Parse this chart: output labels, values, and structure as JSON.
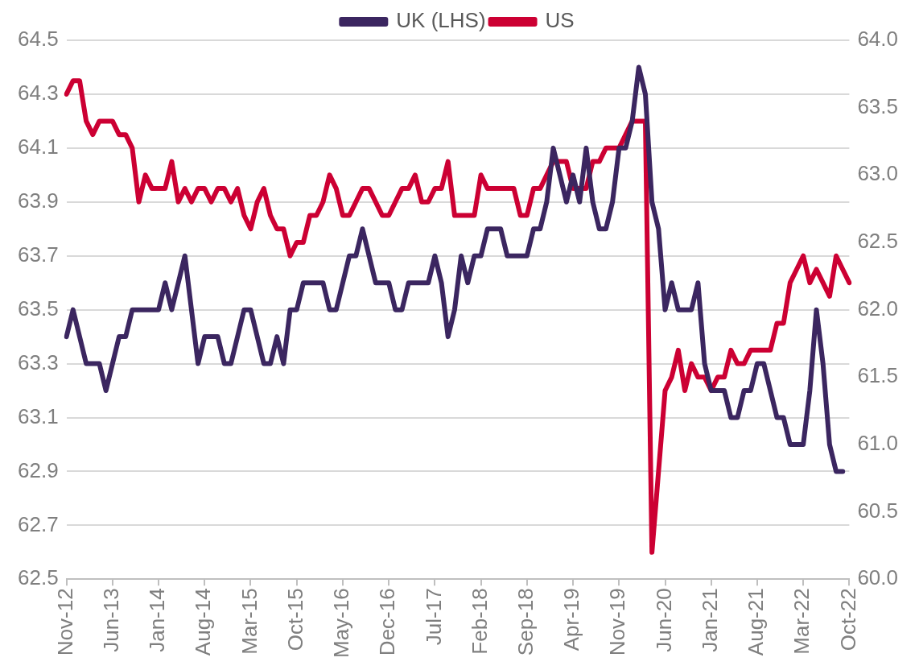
{
  "chart_data": {
    "type": "line",
    "categories": [
      "Nov-12",
      null,
      null,
      null,
      null,
      null,
      null,
      "Jun-13",
      null,
      null,
      null,
      null,
      null,
      null,
      "Jan-14",
      null,
      null,
      null,
      null,
      null,
      null,
      "Aug-14",
      null,
      null,
      null,
      null,
      null,
      null,
      "Mar-15",
      null,
      null,
      null,
      null,
      null,
      null,
      "Oct-15",
      null,
      null,
      null,
      null,
      null,
      null,
      "May-16",
      null,
      null,
      null,
      null,
      null,
      null,
      "Dec-16",
      null,
      null,
      null,
      null,
      null,
      null,
      "Jul-17",
      null,
      null,
      null,
      null,
      null,
      null,
      "Feb-18",
      null,
      null,
      null,
      null,
      null,
      null,
      "Sep-18",
      null,
      null,
      null,
      null,
      null,
      null,
      "Apr-19",
      null,
      null,
      null,
      null,
      null,
      null,
      "Nov-19",
      null,
      null,
      null,
      null,
      null,
      null,
      "Jun-20",
      null,
      null,
      null,
      null,
      null,
      null,
      "Jan-21",
      null,
      null,
      null,
      null,
      null,
      null,
      "Aug-21",
      null,
      null,
      null,
      null,
      null,
      null,
      "Mar-22",
      null,
      null,
      null,
      null,
      null,
      null,
      "Oct-22"
    ],
    "series": [
      {
        "name": "UK (LHS)",
        "color": "#3b2660",
        "axis": "y",
        "values": [
          63.4,
          63.5,
          63.4,
          63.3,
          63.3,
          63.3,
          63.2,
          63.3,
          63.4,
          63.4,
          63.5,
          63.5,
          63.5,
          63.5,
          63.5,
          63.6,
          63.5,
          63.6,
          63.7,
          63.5,
          63.3,
          63.4,
          63.4,
          63.4,
          63.3,
          63.3,
          63.4,
          63.5,
          63.5,
          63.4,
          63.3,
          63.3,
          63.4,
          63.3,
          63.5,
          63.5,
          63.6,
          63.6,
          63.6,
          63.6,
          63.5,
          63.5,
          63.6,
          63.7,
          63.7,
          63.8,
          63.7,
          63.6,
          63.6,
          63.6,
          63.5,
          63.5,
          63.6,
          63.6,
          63.6,
          63.6,
          63.7,
          63.6,
          63.4,
          63.5,
          63.7,
          63.6,
          63.7,
          63.7,
          63.8,
          63.8,
          63.8,
          63.7,
          63.7,
          63.7,
          63.7,
          63.8,
          63.8,
          63.9,
          64.1,
          64.0,
          63.9,
          64.0,
          63.9,
          64.1,
          63.9,
          63.8,
          63.8,
          63.9,
          64.1,
          64.1,
          64.2,
          64.4,
          64.3,
          63.9,
          63.8,
          63.5,
          63.6,
          63.5,
          63.5,
          63.5,
          63.6,
          63.3,
          63.2,
          63.2,
          63.2,
          63.1,
          63.1,
          63.2,
          63.2,
          63.3,
          63.3,
          63.2,
          63.1,
          63.1,
          63.0,
          63.0,
          63.0,
          63.2,
          63.5,
          63.3,
          63.0,
          62.9,
          62.9,
          null
        ]
      },
      {
        "name": "US",
        "color": "#cc0033",
        "axis": "y2",
        "values": [
          63.6,
          63.7,
          63.7,
          63.4,
          63.3,
          63.4,
          63.4,
          63.4,
          63.3,
          63.3,
          63.2,
          62.8,
          63.0,
          62.9,
          62.9,
          62.9,
          63.1,
          62.8,
          62.9,
          62.8,
          62.9,
          62.9,
          62.8,
          62.9,
          62.9,
          62.8,
          62.9,
          62.7,
          62.6,
          62.8,
          62.9,
          62.7,
          62.6,
          62.6,
          62.4,
          62.5,
          62.5,
          62.7,
          62.7,
          62.8,
          63.0,
          62.9,
          62.7,
          62.7,
          62.8,
          62.9,
          62.9,
          62.8,
          62.7,
          62.7,
          62.8,
          62.9,
          62.9,
          63.0,
          62.8,
          62.8,
          62.9,
          62.9,
          63.1,
          62.7,
          62.7,
          62.7,
          62.7,
          63.0,
          62.9,
          62.9,
          62.9,
          62.9,
          62.9,
          62.7,
          62.7,
          62.9,
          62.9,
          63.0,
          63.1,
          63.1,
          63.1,
          62.9,
          62.9,
          62.9,
          63.1,
          63.1,
          63.2,
          63.2,
          63.2,
          63.3,
          63.4,
          63.4,
          63.4,
          60.2,
          60.8,
          61.4,
          61.5,
          61.7,
          61.4,
          61.6,
          61.5,
          61.5,
          61.4,
          61.5,
          61.5,
          61.7,
          61.6,
          61.6,
          61.7,
          61.7,
          61.7,
          61.7,
          61.9,
          61.9,
          62.2,
          62.3,
          62.4,
          62.2,
          62.3,
          62.2,
          62.1,
          62.4,
          62.3,
          62.2
        ]
      }
    ],
    "ylim": [
      62.5,
      64.5
    ],
    "yticks": [
      62.5,
      62.7,
      62.9,
      63.1,
      63.3,
      63.5,
      63.7,
      63.9,
      64.1,
      64.3,
      64.5
    ],
    "y2lim": [
      60,
      64
    ],
    "y2ticks": [
      {
        "value": 60,
        "label": "60.0"
      },
      {
        "value": 60.5,
        "label": "60.5"
      },
      {
        "value": 61,
        "label": "61.0"
      },
      {
        "value": 61.5,
        "label": "61.5"
      },
      {
        "value": 62,
        "label": "62.0"
      },
      {
        "value": 62.5,
        "label": "62.5"
      },
      {
        "value": 63,
        "label": "63.0"
      },
      {
        "value": 63.5,
        "label": "63.5"
      },
      {
        "value": 64,
        "label": "64.0"
      }
    ],
    "grid": "y",
    "legend": "top",
    "marker": "none",
    "line_style": "solid"
  }
}
